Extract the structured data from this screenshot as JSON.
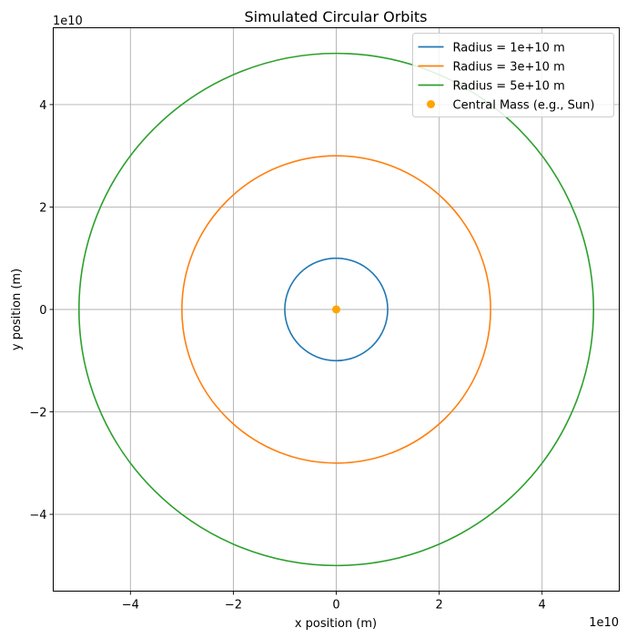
{
  "chart_data": {
    "type": "line",
    "title": "Simulated Circular Orbits",
    "xlabel": "x position (m)",
    "ylabel": "y position (m)",
    "x_offset_label": "1e10",
    "y_offset_label": "1e10",
    "xlim": [
      -55000000000.0,
      55000000000.0
    ],
    "ylim": [
      -55000000000.0,
      55000000000.0
    ],
    "xticks": [
      -40000000000.0,
      -20000000000.0,
      0,
      20000000000.0,
      40000000000.0
    ],
    "yticks": [
      -40000000000.0,
      -20000000000.0,
      0,
      20000000000.0,
      40000000000.0
    ],
    "xtick_labels": [
      "−4",
      "−2",
      "0",
      "2",
      "4"
    ],
    "ytick_labels": [
      "−4",
      "−2",
      "0",
      "2",
      "4"
    ],
    "grid": true,
    "legend_position": "top-right",
    "series": [
      {
        "name": "Radius = 1e+10 m",
        "kind": "circle",
        "radius": 10000000000.0,
        "center": [
          0,
          0
        ],
        "color": "#1f77b4"
      },
      {
        "name": "Radius = 3e+10 m",
        "kind": "circle",
        "radius": 30000000000.0,
        "center": [
          0,
          0
        ],
        "color": "#ff7f0e"
      },
      {
        "name": "Radius = 5e+10 m",
        "kind": "circle",
        "radius": 50000000000.0,
        "center": [
          0,
          0
        ],
        "color": "#2ca02c"
      },
      {
        "name": "Central Mass (e.g., Sun)",
        "kind": "point",
        "x": 0,
        "y": 0,
        "color": "#ffa500"
      }
    ]
  }
}
